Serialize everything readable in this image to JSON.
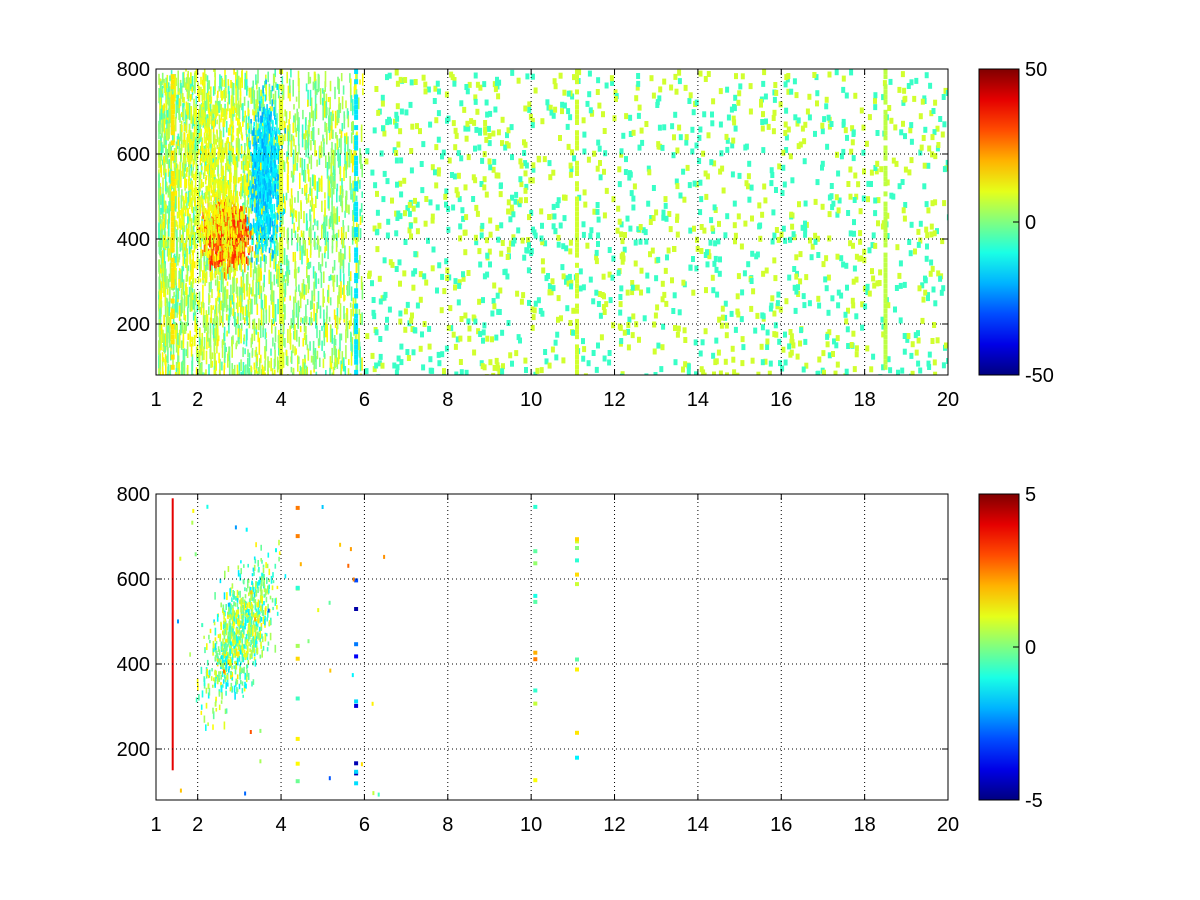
{
  "chart_data": [
    {
      "type": "heatmap",
      "title": "",
      "xlabel": "",
      "ylabel": "",
      "xlim": [
        1,
        20
      ],
      "ylim": [
        80,
        800
      ],
      "x_ticks": [
        "1",
        "2",
        "4",
        "6",
        "8",
        "10",
        "12",
        "14",
        "16",
        "18",
        "20"
      ],
      "x_tick_values": [
        1,
        2,
        4,
        6,
        8,
        10,
        12,
        14,
        16,
        18,
        20
      ],
      "y_ticks": [
        "200",
        "400",
        "600",
        "800"
      ],
      "y_tick_values": [
        200,
        400,
        600,
        800
      ],
      "grid": true,
      "colormap": "jet",
      "colorbar": {
        "min": -50,
        "max": 50,
        "ticks": [
          "-50",
          "0",
          "50"
        ],
        "tick_values": [
          -50,
          0,
          50
        ]
      },
      "features": [
        {
          "kind": "blob",
          "x": 2.7,
          "y": 420,
          "value": 30,
          "spread_x": 0.35,
          "spread_y": 50
        },
        {
          "kind": "blob",
          "x": 3.6,
          "y": 560,
          "value": -18,
          "spread_x": 0.25,
          "spread_y": 110
        },
        {
          "kind": "blob",
          "x": 2.4,
          "y": 520,
          "value": 12,
          "spread_x": 0.6,
          "spread_y": 180
        },
        {
          "kind": "stripe",
          "x": 11.1,
          "value": 8
        },
        {
          "kind": "stripe",
          "x": 5.8,
          "value": -15
        },
        {
          "kind": "stripe",
          "x": 18.5,
          "value": 6
        },
        {
          "kind": "stripe",
          "x": 4.0,
          "value": 10
        },
        {
          "kind": "stripe",
          "x": 1.4,
          "value": 15
        }
      ]
    },
    {
      "type": "heatmap",
      "title": "",
      "xlabel": "",
      "ylabel": "",
      "xlim": [
        1,
        20
      ],
      "ylim": [
        80,
        800
      ],
      "x_ticks": [
        "1",
        "2",
        "4",
        "6",
        "8",
        "10",
        "12",
        "14",
        "16",
        "18",
        "20"
      ],
      "x_tick_values": [
        1,
        2,
        4,
        6,
        8,
        10,
        12,
        14,
        16,
        18,
        20
      ],
      "y_ticks": [
        "200",
        "400",
        "600",
        "800"
      ],
      "y_tick_values": [
        200,
        400,
        600,
        800
      ],
      "grid": true,
      "colormap": "jet",
      "colorbar": {
        "min": -5,
        "max": 5,
        "ticks": [
          "-5",
          "0",
          "5"
        ],
        "tick_values": [
          -5,
          0,
          5
        ]
      },
      "features": [
        {
          "kind": "cluster",
          "x": 3.0,
          "y": 480,
          "value": 0,
          "spread_x": 0.55,
          "spread_y": 90
        },
        {
          "kind": "line",
          "x": 1.4,
          "value": 4
        },
        {
          "kind": "spots",
          "x": 4.4,
          "value": 1
        },
        {
          "kind": "spots",
          "x": 5.8,
          "value": -3
        },
        {
          "kind": "spots",
          "x": 11.1,
          "value": 0.5
        },
        {
          "kind": "spots",
          "x": 10.1,
          "value": 0.8
        }
      ]
    }
  ]
}
